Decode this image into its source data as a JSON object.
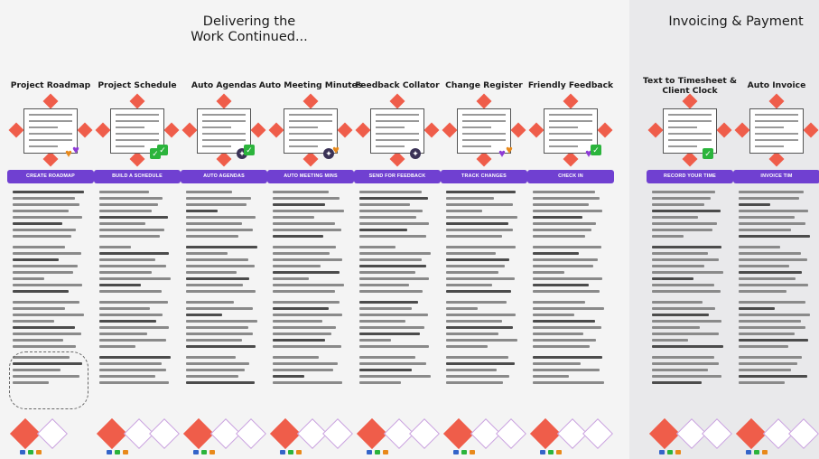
{
  "sections": {
    "left_title_line1": "Delivering the",
    "left_title_line2": "Work Continued...",
    "right_title": "Invoicing & Payment"
  },
  "columns": [
    {
      "title": "Project Roadmap",
      "button": "CREATE ROADMAP",
      "badges": [
        "heart",
        "purple"
      ]
    },
    {
      "title": "Project Schedule",
      "button": "BUILD A SCHEDULE",
      "badges": [
        "check",
        "check"
      ]
    },
    {
      "title": "Auto Agendas",
      "button": "AUTO AGENDAS",
      "badges": [
        "bug",
        "check"
      ]
    },
    {
      "title": "Auto Meeting Minutes",
      "button": "AUTO MEETING MINS",
      "badges": [
        "bug",
        "heart"
      ]
    },
    {
      "title": "Feedback Collator",
      "button": "SEND FOR FEEDBACK",
      "badges": [
        "bug"
      ]
    },
    {
      "title": "Change Register",
      "button": "TRACK CHANGES",
      "badges": [
        "purple",
        "heart"
      ]
    },
    {
      "title": "Friendly Feedback",
      "button": "CHECK IN",
      "badges": [
        "purple",
        "check"
      ]
    },
    {
      "title": "Text to Timesheet & Client Clock",
      "button": "RECORD YOUR TIME",
      "badges": [
        "check"
      ]
    },
    {
      "title": "Auto Invoice",
      "button": "INVOICE TIM",
      "badges": []
    }
  ]
}
